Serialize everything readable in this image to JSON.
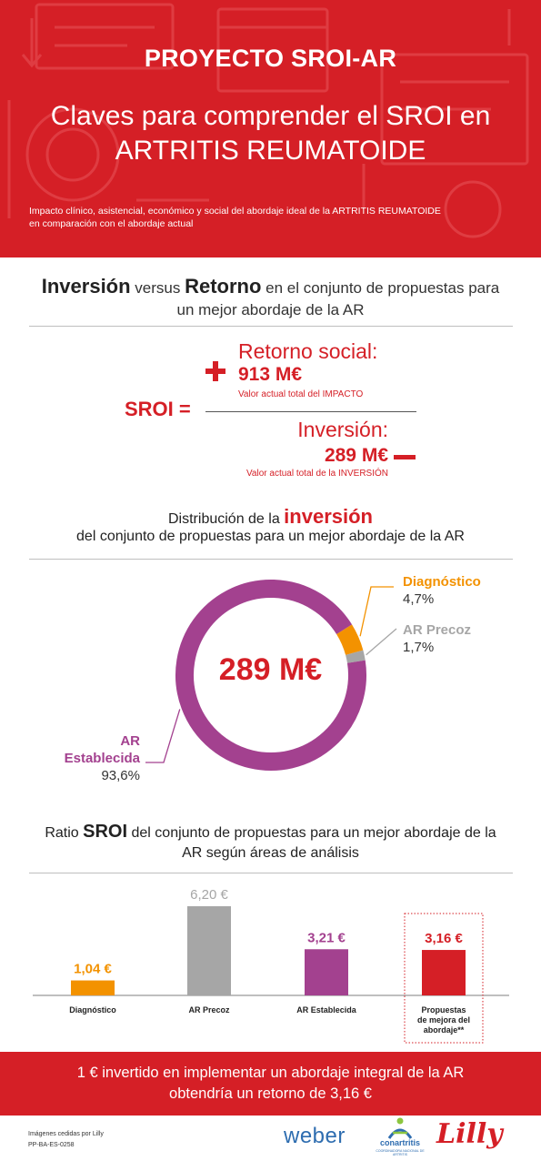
{
  "header": {
    "title": "PROYECTO SROI-AR",
    "subtitle_line1": "Claves para comprender el SROI en",
    "subtitle_line2": "ARTRITIS REUMATOIDE",
    "description_line1": "Impacto clínico, asistencial, económico y social del abordaje ideal de la ARTRITIS REUMATOIDE",
    "description_line2": "en comparación con el abordaje actual"
  },
  "formula_section": {
    "title_word1": "Inversión",
    "title_versus": " versus ",
    "title_word2": "Retorno",
    "title_rest": " en el conjunto de propuestas para",
    "title_line2": "un mejor abordaje de la AR",
    "sroi_label": "SROI =",
    "return_label": "Retorno social:",
    "return_value": "913 M€",
    "return_note": "Valor actual total del IMPACTO",
    "investment_label": "Inversión:",
    "investment_value": "289 M€",
    "investment_note": "Valor actual total de la INVERSIÓN"
  },
  "distribution_section": {
    "title_prefix": "Distribución de la ",
    "title_highlight": "inversión",
    "title_line2": "del conjunto de propuestas para un mejor abordaje de la AR",
    "center_value": "289 M€",
    "segments": [
      {
        "name": "Diagnóstico",
        "pct_label": "4,7%",
        "value": 4.7,
        "color": "#f39200"
      },
      {
        "name": "AR Precoz",
        "pct_label": "1,7%",
        "value": 1.7,
        "color": "#a6a6a6"
      },
      {
        "name_line1": "AR",
        "name_line2": "Establecida",
        "pct_label": "93,6%",
        "value": 93.6,
        "color": "#a3418f"
      }
    ]
  },
  "ratio_section": {
    "title_prefix": "Ratio ",
    "title_highlight": "SROI",
    "title_rest": " del conjunto de propuestas para un mejor abordaje de la",
    "title_line2": "AR según áreas de análisis"
  },
  "chart_data": {
    "type": "bar",
    "categories": [
      "Diagnóstico",
      "AR Precoz",
      "AR Establecida",
      "Propuestas de mejora del abordaje**"
    ],
    "category_lines": [
      [
        "Diagnóstico"
      ],
      [
        "AR Precoz"
      ],
      [
        "AR Establecida"
      ],
      [
        "Propuestas",
        "de mejora del",
        "abordaje**"
      ]
    ],
    "values": [
      1.04,
      6.2,
      3.21,
      3.16
    ],
    "value_labels": [
      "1,04 €",
      "6,20 €",
      "3,21 €",
      "3,16 €"
    ],
    "colors": [
      "#f39200",
      "#a6a6a6",
      "#a3418f",
      "#d51f26"
    ],
    "highlighted_category": "Propuestas de mejora del abordaje**",
    "ylim": [
      0,
      6.2
    ],
    "grid": false,
    "legend": "none"
  },
  "footer": {
    "band_line1": "1 € invertido en implementar un abordaje integral de la AR",
    "band_line2": "obtendría un retorno de 3,16 €",
    "credit_line1": "Imágenes cedidas por Lilly",
    "credit_line2": "PP-BA-ES-0258",
    "logo_weber": "weber",
    "logo_conartritis": "conartritis",
    "logo_conartritis_tag": "COORDINADORA NACIONAL DE ARTRITIS",
    "logo_lilly": "Lilly"
  },
  "colors": {
    "brand_red": "#d51f26",
    "orange": "#f39200",
    "grey": "#a6a6a6",
    "purple": "#a3418f"
  }
}
